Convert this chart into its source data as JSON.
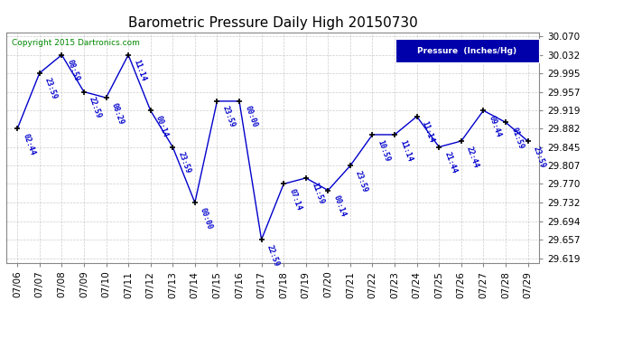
{
  "title": "Barometric Pressure Daily High 20150730",
  "legend_label": "Pressure  (Inches/Hg)",
  "copyright": "Copyright 2015 Dartronics.com",
  "dates": [
    "07/06",
    "07/07",
    "07/08",
    "07/09",
    "07/10",
    "07/11",
    "07/12",
    "07/13",
    "07/14",
    "07/15",
    "07/16",
    "07/17",
    "07/18",
    "07/19",
    "07/20",
    "07/21",
    "07/22",
    "07/23",
    "07/24",
    "07/25",
    "07/26",
    "07/27",
    "07/28",
    "07/29"
  ],
  "values": [
    29.882,
    29.995,
    30.032,
    29.957,
    29.945,
    30.032,
    29.919,
    29.845,
    29.732,
    29.938,
    29.938,
    29.657,
    29.77,
    29.782,
    29.757,
    29.807,
    29.87,
    29.87,
    29.907,
    29.845,
    29.857,
    29.919,
    29.895,
    29.857
  ],
  "times": [
    "02:44",
    "23:59",
    "08:59",
    "22:59",
    "08:29",
    "11:14",
    "00:14",
    "23:59",
    "00:00",
    "23:59",
    "00:00",
    "22:59",
    "07:14",
    "11:59",
    "00:14",
    "23:59",
    "10:59",
    "11:14",
    "11:14",
    "21:44",
    "22:44",
    "09:44",
    "01:59",
    "23:59"
  ],
  "yticks": [
    29.619,
    29.657,
    29.694,
    29.732,
    29.77,
    29.807,
    29.845,
    29.882,
    29.919,
    29.957,
    29.995,
    30.032,
    30.07
  ],
  "ymin": 29.61,
  "ymax": 30.078,
  "line_color": "#0000cc",
  "marker_color": "#000000",
  "label_color": "#0000cc",
  "bg_color": "#ffffff",
  "grid_color": "#aaaaaa",
  "legend_bg": "#0000aa",
  "legend_text": "#ffffff",
  "title_color": "#000000",
  "copyright_color": "#008800"
}
